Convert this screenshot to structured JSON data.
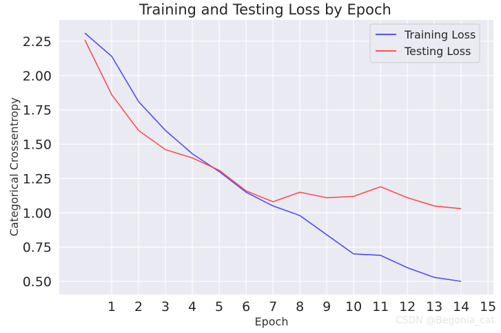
{
  "chart_data": {
    "type": "line",
    "title": "Training and Testing Loss by Epoch",
    "xlabel": "Epoch",
    "ylabel": "Categorical Crossentropy",
    "xlim": [
      -0.95,
      15.2
    ],
    "ylim": [
      0.405,
      2.405
    ],
    "x_ticks": [
      1,
      2,
      3,
      4,
      5,
      6,
      7,
      8,
      9,
      10,
      11,
      12,
      13,
      14,
      15
    ],
    "y_ticks": [
      0.5,
      0.75,
      1.0,
      1.25,
      1.5,
      1.75,
      2.0,
      2.25
    ],
    "y_tick_labels": [
      "0.50",
      "0.75",
      "1.00",
      "1.25",
      "1.50",
      "1.75",
      "2.00",
      "2.25"
    ],
    "grid": true,
    "legend_position": "top-right",
    "x": [
      0,
      1,
      2,
      3,
      4,
      5,
      6,
      7,
      8,
      9,
      10,
      11,
      12,
      13,
      14
    ],
    "series": [
      {
        "name": "Training Loss",
        "color": "#3b3bff",
        "values": [
          2.31,
          2.14,
          1.81,
          1.6,
          1.43,
          1.3,
          1.15,
          1.05,
          0.98,
          0.84,
          0.7,
          0.69,
          0.6,
          0.53,
          0.5
        ]
      },
      {
        "name": "Testing Loss",
        "color": "#ff3b3b",
        "values": [
          2.26,
          1.86,
          1.6,
          1.46,
          1.4,
          1.31,
          1.16,
          1.08,
          1.15,
          1.11,
          1.12,
          1.19,
          1.11,
          1.05,
          1.03
        ]
      }
    ]
  },
  "watermark": "CSDN @Begonia_cat",
  "colors": {
    "plot_background": "#eaeaf2",
    "grid": "#ffffff"
  }
}
